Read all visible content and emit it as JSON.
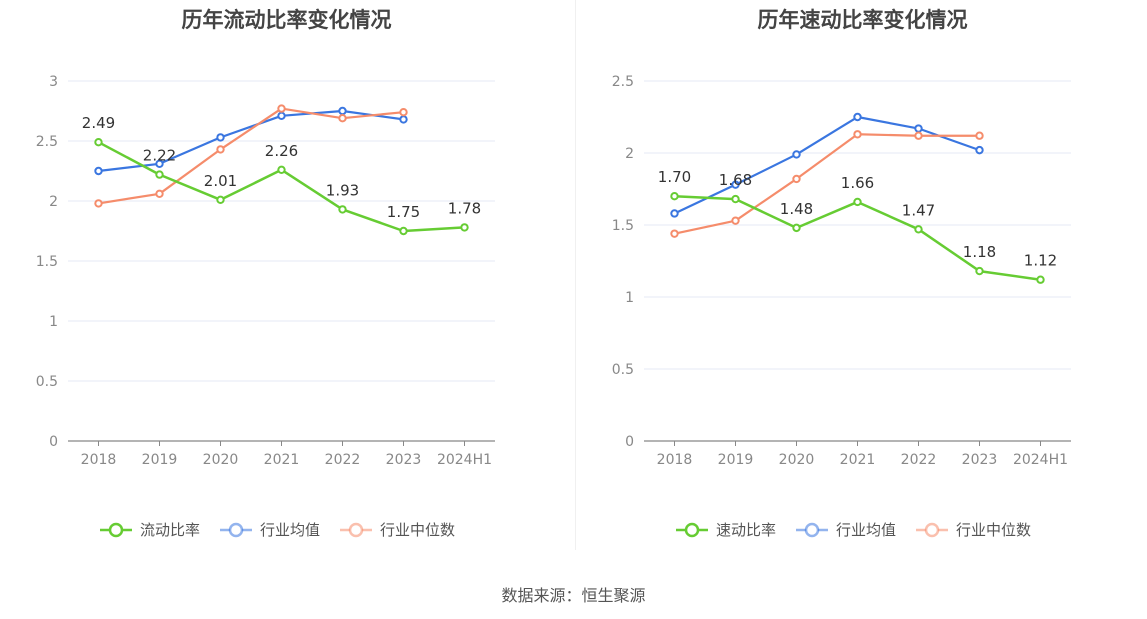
{
  "source_label": "数据来源：恒生聚源",
  "colors": {
    "primary": "#66cc33",
    "average": "#3a76e0",
    "median": "#f58c6b"
  },
  "chart_data": [
    {
      "type": "line",
      "title": "历年流动比率变化情况",
      "categories": [
        "2018",
        "2019",
        "2020",
        "2021",
        "2022",
        "2023",
        "2024H1"
      ],
      "ylim": [
        0,
        3
      ],
      "yticks": [
        0,
        0.5,
        1,
        1.5,
        2,
        2.5,
        3
      ],
      "ytick_labels": [
        "0",
        "0.5",
        "1",
        "1.5",
        "2",
        "2.5",
        "3"
      ],
      "grid": true,
      "legend": "bottom",
      "series": [
        {
          "name": "流动比率",
          "color": "#66cc33",
          "values": [
            2.49,
            2.22,
            2.01,
            2.26,
            1.93,
            1.75,
            1.78
          ],
          "labels": [
            "2.49",
            "2.22",
            "2.01",
            "2.26",
            "1.93",
            "1.75",
            "1.78"
          ]
        },
        {
          "name": "行业均值",
          "color": "#3a76e0",
          "values": [
            2.25,
            2.31,
            2.53,
            2.71,
            2.75,
            2.68,
            null
          ]
        },
        {
          "name": "行业中位数",
          "color": "#f58c6b",
          "values": [
            1.98,
            2.06,
            2.43,
            2.77,
            2.69,
            2.74,
            null
          ]
        }
      ]
    },
    {
      "type": "line",
      "title": "历年速动比率变化情况",
      "categories": [
        "2018",
        "2019",
        "2020",
        "2021",
        "2022",
        "2023",
        "2024H1"
      ],
      "ylim": [
        0,
        2.5
      ],
      "yticks": [
        0,
        0.5,
        1,
        1.5,
        2,
        2.5
      ],
      "ytick_labels": [
        "0",
        "0.5",
        "1",
        "1.5",
        "2",
        "2.5"
      ],
      "grid": true,
      "legend": "bottom",
      "series": [
        {
          "name": "速动比率",
          "color": "#66cc33",
          "values": [
            1.7,
            1.68,
            1.48,
            1.66,
            1.47,
            1.18,
            1.12
          ],
          "labels": [
            "1.70",
            "1.68",
            "1.48",
            "1.66",
            "1.47",
            "1.18",
            "1.12"
          ]
        },
        {
          "name": "行业均值",
          "color": "#3a76e0",
          "values": [
            1.58,
            1.78,
            1.99,
            2.25,
            2.17,
            2.02,
            null
          ]
        },
        {
          "name": "行业中位数",
          "color": "#f58c6b",
          "values": [
            1.44,
            1.53,
            1.82,
            2.13,
            2.12,
            2.12,
            null
          ]
        }
      ]
    }
  ]
}
